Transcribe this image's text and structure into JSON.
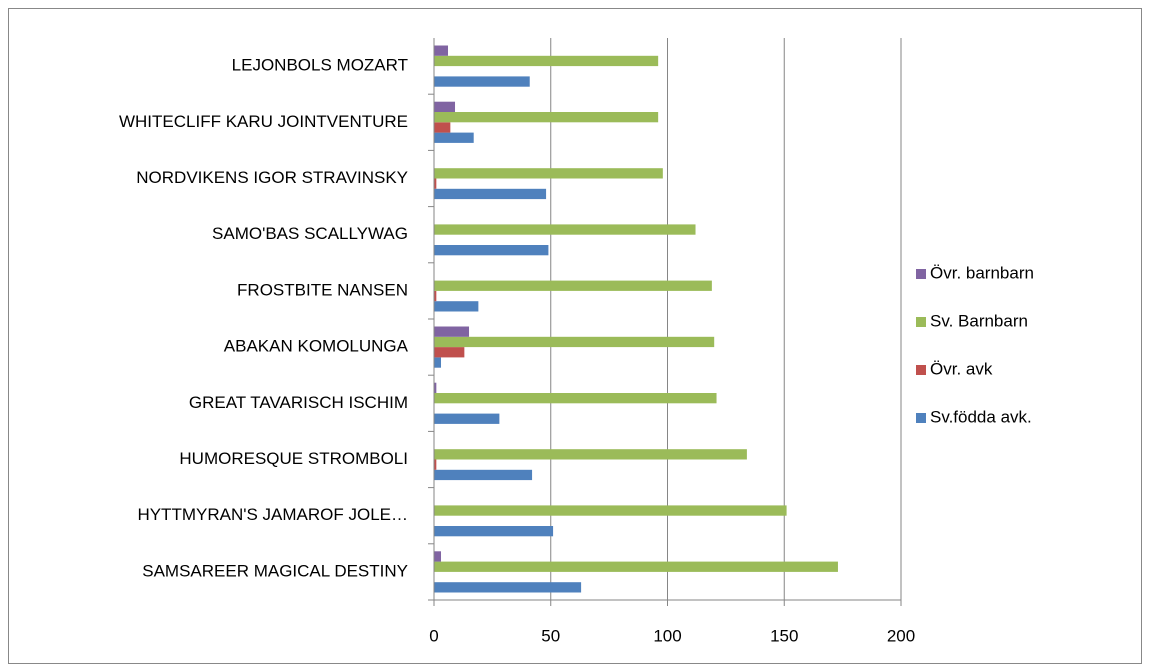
{
  "chart_data": {
    "type": "bar",
    "orientation": "horizontal",
    "categories": [
      "SAMSAREER MAGICAL DESTINY",
      "HYTTMYRAN'S JAMAROF JOLE…",
      "HUMORESQUE STROMBOLI",
      "GREAT TAVARISCH ISCHIM",
      "ABAKAN KOMOLUNGA",
      "FROSTBITE NANSEN",
      "SAMO'BAS SCALLYWAG",
      "NORDVIKENS IGOR STRAVINSKY",
      "WHITECLIFF KARU JOINTVENTURE",
      "LEJONBOLS MOZART"
    ],
    "series": [
      {
        "name": "Sv.födda avk.",
        "color": "#4f81bd",
        "values": [
          63,
          51,
          42,
          28,
          3,
          19,
          49,
          48,
          17,
          41
        ]
      },
      {
        "name": "Övr. avk",
        "color": "#c0504d",
        "values": [
          0,
          0,
          1,
          0,
          13,
          1,
          0,
          1,
          7,
          0
        ]
      },
      {
        "name": "Sv. Barnbarn",
        "color": "#9bbb59",
        "values": [
          173,
          151,
          134,
          121,
          120,
          119,
          112,
          98,
          96,
          96
        ]
      },
      {
        "name": "Övr. barnbarn",
        "color": "#8064a2",
        "values": [
          3,
          0,
          0,
          1,
          15,
          0,
          0,
          0,
          9,
          6
        ]
      }
    ],
    "xlim": [
      0,
      200
    ],
    "xticks": [
      0,
      50,
      100,
      150,
      200
    ],
    "grid": true,
    "legend": "right"
  }
}
